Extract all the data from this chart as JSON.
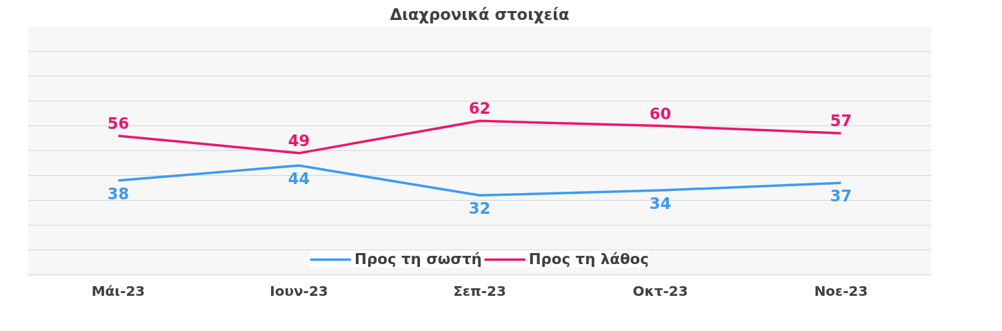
{
  "chart_data": {
    "type": "line",
    "title": "Διαχρονικά στοιχεία",
    "categories": [
      "Μάι-23",
      "Ιουν-23",
      "Σεπ-23",
      "Οκτ-23",
      "Νοε-23"
    ],
    "series": [
      {
        "name": "Προς τη σωστή",
        "color": "#3d9bf0",
        "values": [
          38,
          44,
          32,
          34,
          37
        ]
      },
      {
        "name": "Προς τη λάθος",
        "color": "#e8176f",
        "values": [
          56,
          49,
          62,
          60,
          57
        ]
      }
    ],
    "ylim": [
      0,
      100
    ],
    "yticks": [
      {
        "value": 0,
        "label": null
      },
      {
        "value": 10,
        "label": null
      },
      {
        "value": 20,
        "label": null
      },
      {
        "value": 30,
        "label": null
      },
      {
        "value": 40,
        "label": null
      },
      {
        "value": 50,
        "label": null
      },
      {
        "value": 60,
        "label": null
      },
      {
        "value": 70,
        "label": null
      },
      {
        "value": 80,
        "label": null
      },
      {
        "value": 90,
        "label": null
      },
      {
        "value": 100,
        "label": null
      }
    ],
    "grid": "y",
    "legend": "bottom",
    "tick_labels": "x",
    "data_labels": true,
    "marker": "none",
    "line_style": "solid"
  }
}
